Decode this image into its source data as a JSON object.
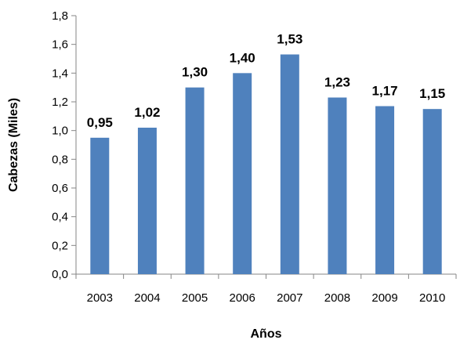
{
  "chart_data": {
    "type": "bar",
    "title": "",
    "xlabel": "Años",
    "ylabel": "Cabezas (Miles)",
    "categories": [
      "2003",
      "2004",
      "2005",
      "2006",
      "2007",
      "2008",
      "2009",
      "2010"
    ],
    "values": [
      0.95,
      1.02,
      1.3,
      1.4,
      1.53,
      1.23,
      1.17,
      1.15
    ],
    "value_labels": [
      "0,95",
      "1,02",
      "1,30",
      "1,40",
      "1,53",
      "1,23",
      "1,17",
      "1,15"
    ],
    "ylim": [
      0,
      1.8
    ],
    "yticks": [
      0,
      0.2,
      0.4,
      0.6,
      0.8,
      1.0,
      1.2,
      1.4,
      1.6,
      1.8
    ],
    "ytick_labels": [
      "0,0",
      "0,2",
      "0,4",
      "0,6",
      "0,8",
      "1,0",
      "1,2",
      "1,4",
      "1,6",
      "1,8"
    ],
    "bar_color": "#4F81BD",
    "grid": false,
    "legend": "none"
  }
}
